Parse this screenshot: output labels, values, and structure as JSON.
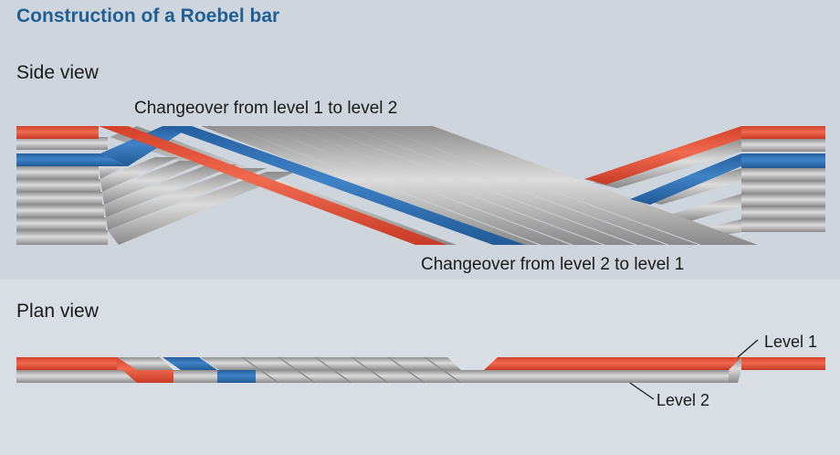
{
  "title": "Construction of a Roebel bar",
  "side_view": {
    "label": "Side view",
    "annotation_top": "Changeover from level 1 to level 2",
    "annotation_bottom": "Changeover from level 2 to level 1"
  },
  "plan_view": {
    "label": "Plan view",
    "level1_label": "Level 1",
    "level2_label": "Level 2"
  },
  "colors": {
    "title": "#1f5f95",
    "red_strand": "#e8533a",
    "blue_strand": "#2f6fb3",
    "gray_strand": "#b4b4b4",
    "background_top": "#cfd5dc",
    "background_bottom": "#d9dee4"
  }
}
